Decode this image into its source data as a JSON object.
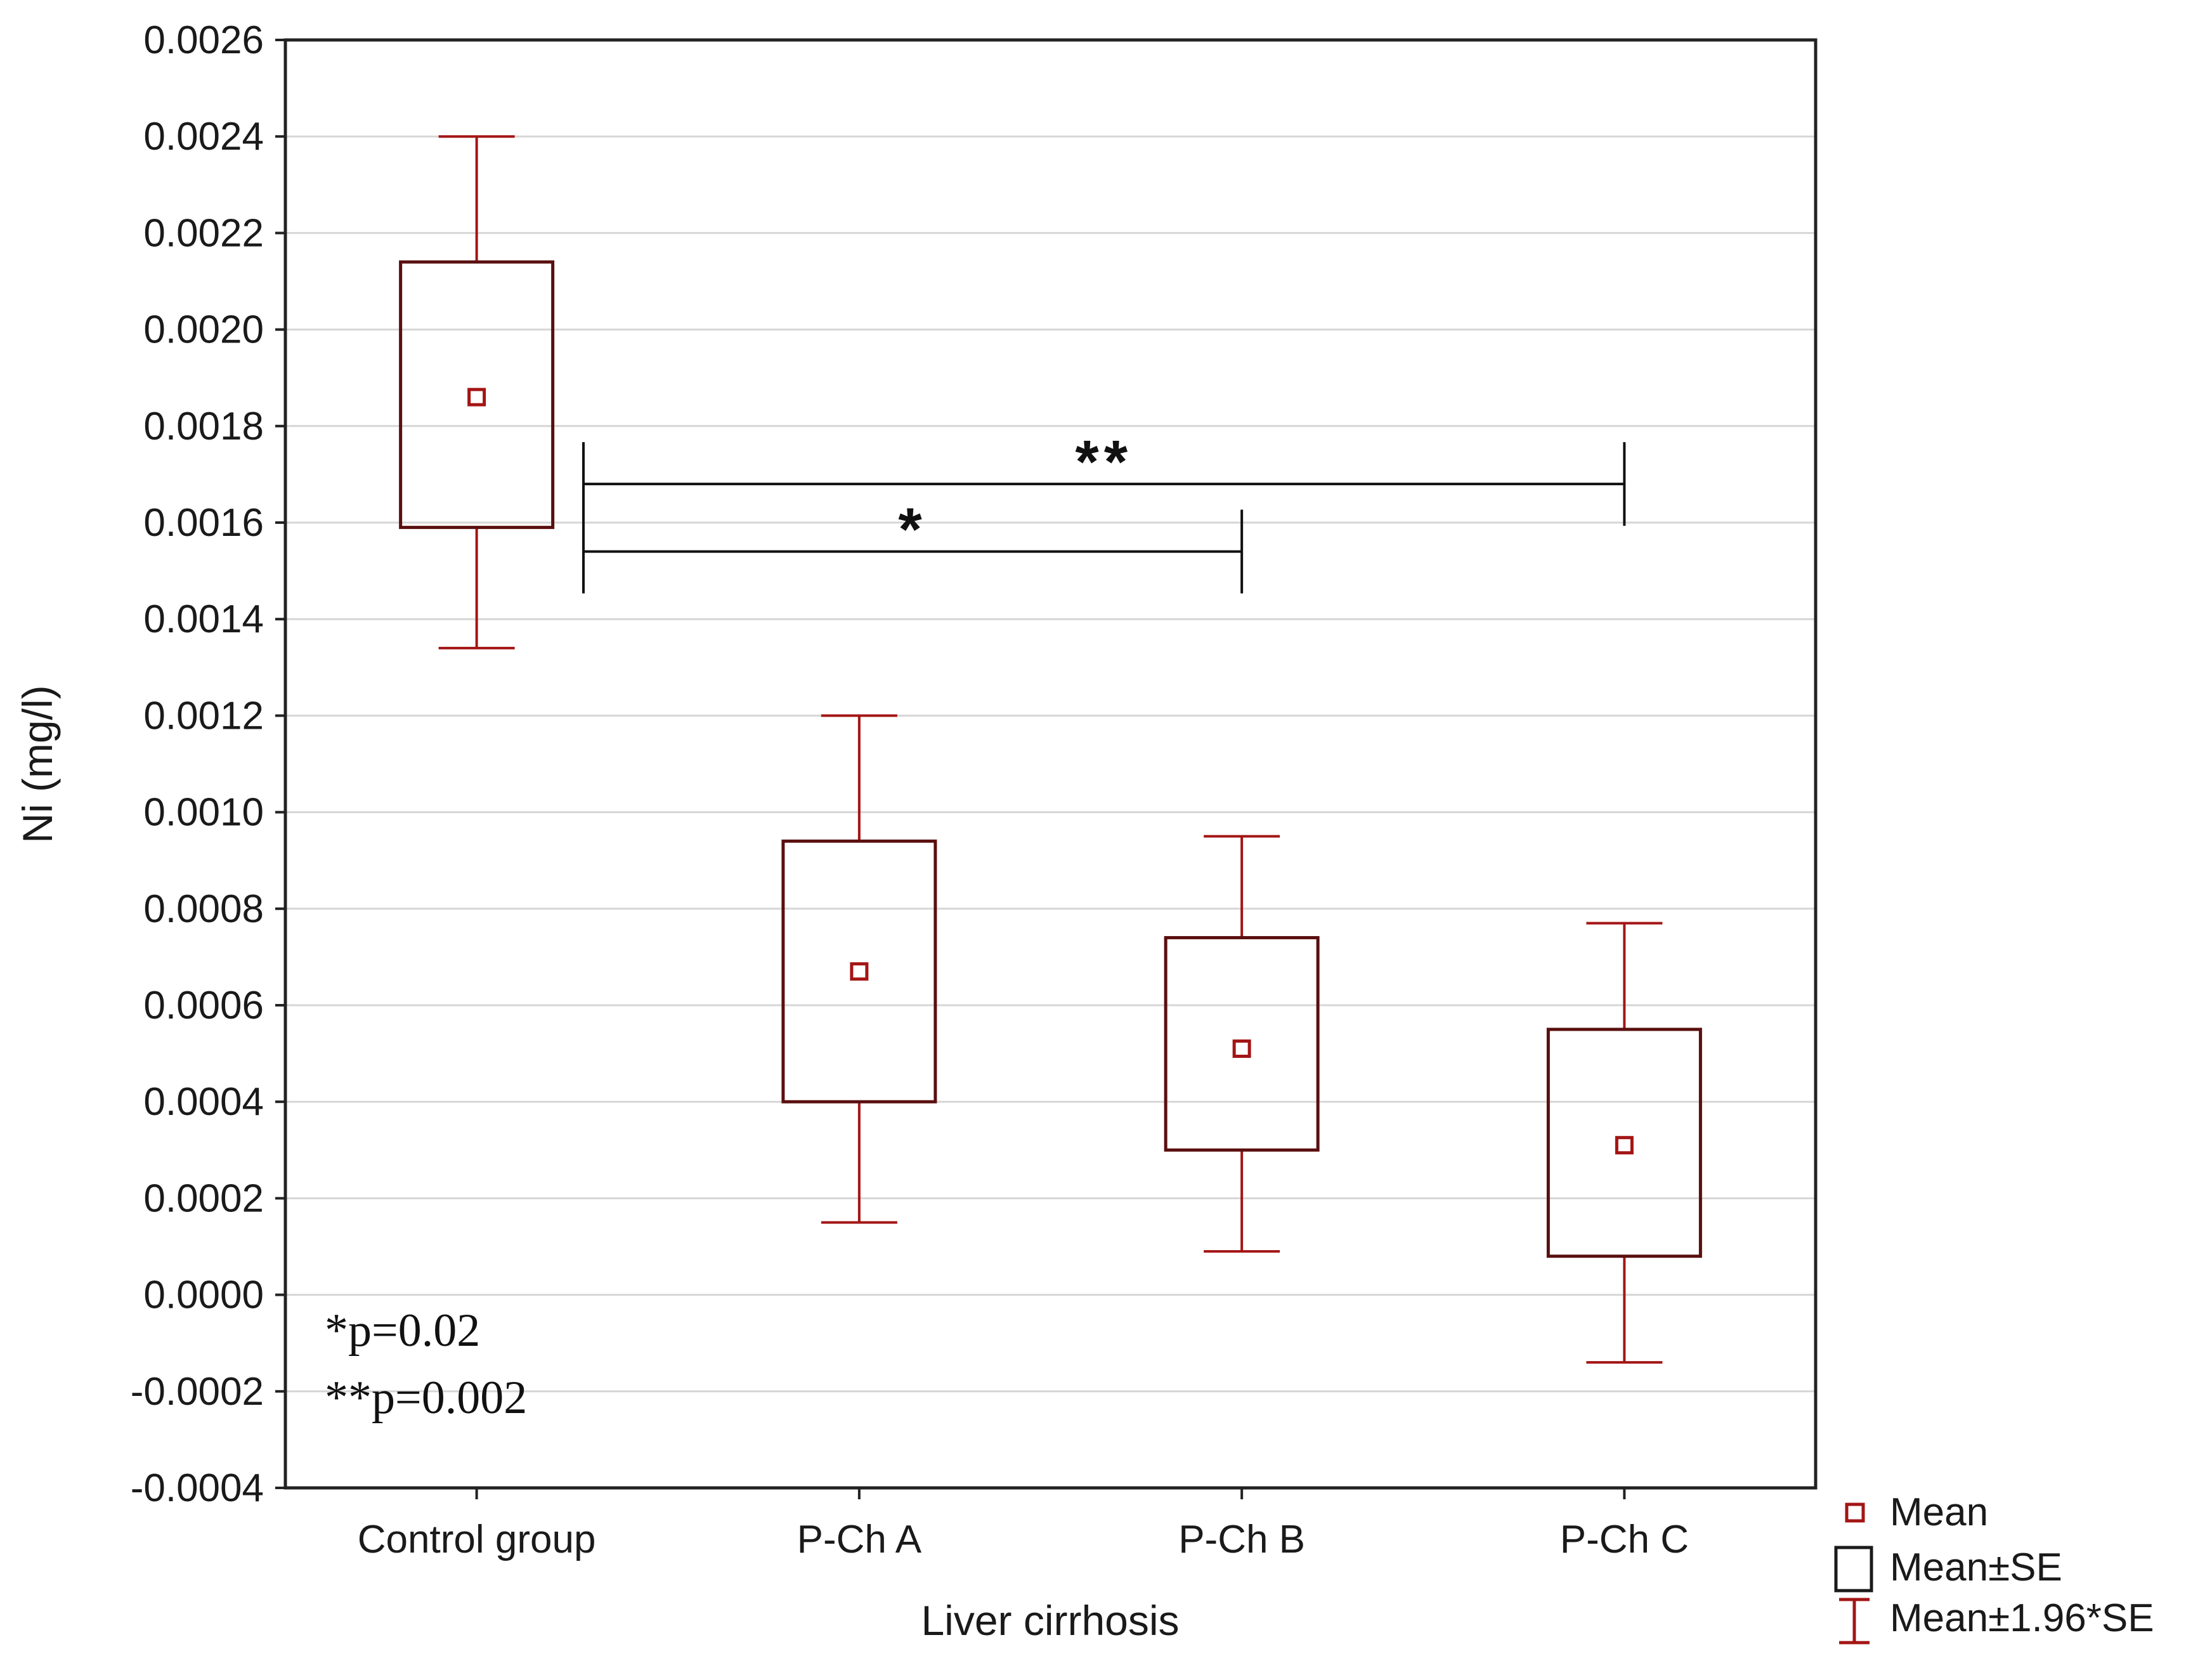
{
  "chart_data": {
    "type": "box",
    "xlabel": "Liver cirrhosis",
    "ylabel": "Ni (mg/l)",
    "ylim": [
      -0.0004,
      0.0026
    ],
    "yticks": [
      "0.0026",
      "0.0024",
      "0.0022",
      "0.0020",
      "0.0018",
      "0.0016",
      "0.0014",
      "0.0012",
      "0.0010",
      "0.0008",
      "0.0006",
      "0.0004",
      "0.0002",
      "0.0000",
      "-0.0002",
      "-0.0004"
    ],
    "grid": true,
    "categories": [
      "Control group",
      "P-Ch A",
      "P-Ch B",
      "P-Ch C"
    ],
    "mean": [
      0.00186,
      0.00067,
      0.00051,
      0.00031
    ],
    "se_low": [
      0.00159,
      0.0004,
      0.0003,
      8e-05
    ],
    "se_high": [
      0.00214,
      0.00094,
      0.00074,
      0.00055
    ],
    "ci_low": [
      0.00134,
      0.00015,
      9e-05,
      -0.00014
    ],
    "ci_high": [
      0.0024,
      0.0012,
      0.00095,
      0.00077
    ],
    "colors": {
      "mean": "#a31515",
      "box": "#5a0f0f",
      "whisker": "#a31515",
      "bracket": "#111111"
    },
    "legend": {
      "placement": "bottom-right",
      "items": [
        {
          "symbol": "small-square",
          "label": "Mean"
        },
        {
          "symbol": "box",
          "label": "Mean±SE"
        },
        {
          "symbol": "whisker",
          "label": "Mean±1.96*SE"
        }
      ]
    },
    "annotations": {
      "brackets": [
        {
          "from": 0,
          "to": 2,
          "y": 0.00154,
          "label": "*"
        },
        {
          "from": 0,
          "to": 3,
          "y": 0.00168,
          "label": "**"
        }
      ],
      "notes": [
        "*p=0.02",
        "**p=0.002"
      ]
    }
  }
}
